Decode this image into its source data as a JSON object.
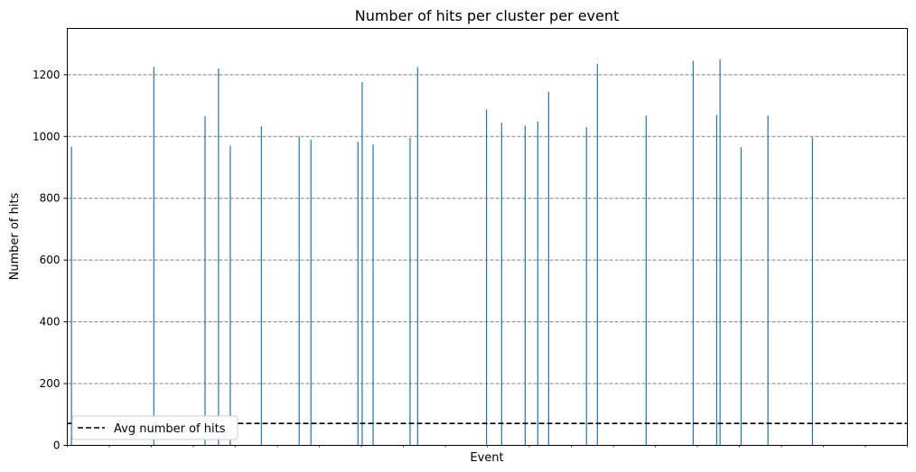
{
  "chart_data": {
    "type": "bar",
    "title": "Number of hits per cluster per event",
    "xlabel": "Event",
    "ylabel": "Number of hits",
    "ylim": [
      0,
      1350
    ],
    "yticks": [
      0,
      200,
      400,
      600,
      800,
      1000,
      1200
    ],
    "xlim": [
      0,
      1000
    ],
    "grid": "y-dashed",
    "bar_color": "#1f77b4",
    "x": [
      5,
      103,
      164,
      180,
      194,
      231,
      276,
      290,
      346,
      351,
      364,
      408,
      417,
      499,
      517,
      545,
      560,
      573,
      618,
      631,
      689,
      745,
      773,
      777,
      802,
      834,
      887
    ],
    "values": [
      967,
      1225,
      1065,
      1220,
      970,
      1033,
      1000,
      990,
      983,
      1176,
      975,
      995,
      1225,
      1087,
      1045,
      1035,
      1048,
      1145,
      1030,
      1235,
      1068,
      1245,
      1070,
      1250,
      965,
      1068,
      997
    ],
    "reference_line": {
      "label": "Avg number of hits",
      "value": 71,
      "style": "dashed",
      "color": "#000000"
    },
    "legend": {
      "position": "lower-left",
      "entries": [
        "Avg number of hits"
      ]
    }
  }
}
